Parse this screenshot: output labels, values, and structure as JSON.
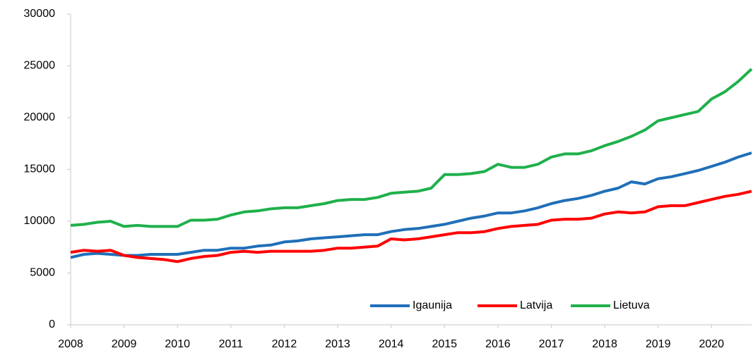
{
  "chart_data": {
    "type": "line",
    "x": [
      2008,
      2008.25,
      2008.5,
      2008.75,
      2009,
      2009.25,
      2009.5,
      2009.75,
      2010,
      2010.25,
      2010.5,
      2010.75,
      2011,
      2011.25,
      2011.5,
      2011.75,
      2012,
      2012.25,
      2012.5,
      2012.75,
      2013,
      2013.25,
      2013.5,
      2013.75,
      2014,
      2014.25,
      2014.5,
      2014.75,
      2015,
      2015.25,
      2015.5,
      2015.75,
      2016,
      2016.25,
      2016.5,
      2016.75,
      2017,
      2017.25,
      2017.5,
      2017.75,
      2018,
      2018.25,
      2018.5,
      2018.75,
      2019,
      2019.25,
      2019.5,
      2019.75,
      2020,
      2020.25,
      2020.5,
      2020.75
    ],
    "series": [
      {
        "name": "Igaunija",
        "color": "#1f6fb8",
        "values": [
          6500,
          6800,
          6900,
          6800,
          6700,
          6700,
          6800,
          6800,
          6800,
          7000,
          7200,
          7200,
          7400,
          7400,
          7600,
          7700,
          8000,
          8100,
          8300,
          8400,
          8500,
          8600,
          8700,
          8700,
          9000,
          9200,
          9300,
          9500,
          9700,
          10000,
          10300,
          10500,
          10800,
          10800,
          11000,
          11300,
          11700,
          12000,
          12200,
          12500,
          12900,
          13200,
          13800,
          13600,
          14100,
          14300,
          14600,
          14900,
          15300,
          15700,
          16200,
          16600
        ]
      },
      {
        "name": "Latvija",
        "color": "#ff0000",
        "values": [
          7000,
          7200,
          7100,
          7200,
          6700,
          6500,
          6400,
          6300,
          6100,
          6400,
          6600,
          6700,
          7000,
          7100,
          7000,
          7100,
          7100,
          7100,
          7100,
          7200,
          7400,
          7400,
          7500,
          7600,
          8300,
          8200,
          8300,
          8500,
          8700,
          8900,
          8900,
          9000,
          9300,
          9500,
          9600,
          9700,
          10100,
          10200,
          10200,
          10300,
          10700,
          10900,
          10800,
          10900,
          11400,
          11500,
          11500,
          11800,
          12100,
          12400,
          12600,
          12900
        ]
      },
      {
        "name": "Lietuva",
        "color": "#1fb04b",
        "values": [
          9600,
          9700,
          9900,
          10000,
          9500,
          9600,
          9500,
          9500,
          9500,
          10100,
          10100,
          10200,
          10600,
          10900,
          11000,
          11200,
          11300,
          11300,
          11500,
          11700,
          12000,
          12100,
          12100,
          12300,
          12700,
          12800,
          12900,
          13200,
          14500,
          14500,
          14600,
          14800,
          15500,
          15200,
          15200,
          15500,
          16200,
          16500,
          16500,
          16800,
          17300,
          17700,
          18200,
          18800,
          19700,
          20000,
          20300,
          20600,
          21800,
          22500,
          23500,
          24700
        ]
      }
    ],
    "xlim": [
      2008,
      2020.75
    ],
    "xticks": [
      2008,
      2009,
      2010,
      2011,
      2012,
      2013,
      2014,
      2015,
      2016,
      2017,
      2018,
      2019,
      2020
    ],
    "ylim": [
      0,
      30000
    ],
    "yticks": [
      0,
      5000,
      10000,
      15000,
      20000,
      25000,
      30000
    ],
    "grid": false,
    "legend": "lower right"
  }
}
